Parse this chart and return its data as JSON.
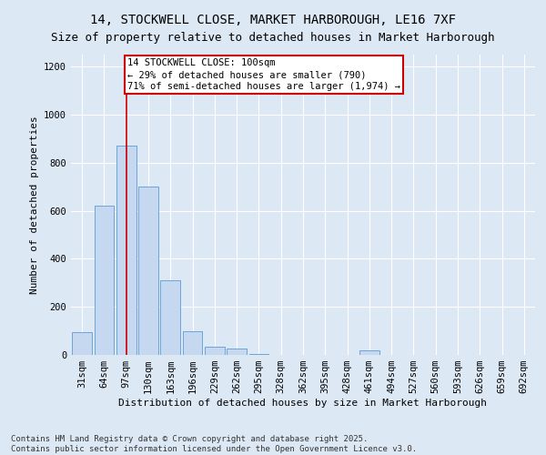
{
  "title": "14, STOCKWELL CLOSE, MARKET HARBOROUGH, LE16 7XF",
  "subtitle": "Size of property relative to detached houses in Market Harborough",
  "xlabel": "Distribution of detached houses by size in Market Harborough",
  "ylabel": "Number of detached properties",
  "categories": [
    "31sqm",
    "64sqm",
    "97sqm",
    "130sqm",
    "163sqm",
    "196sqm",
    "229sqm",
    "262sqm",
    "295sqm",
    "328sqm",
    "362sqm",
    "395sqm",
    "428sqm",
    "461sqm",
    "494sqm",
    "527sqm",
    "560sqm",
    "593sqm",
    "626sqm",
    "659sqm",
    "692sqm"
  ],
  "values": [
    95,
    620,
    870,
    700,
    310,
    100,
    35,
    25,
    5,
    0,
    0,
    0,
    0,
    20,
    0,
    0,
    0,
    0,
    0,
    0,
    0
  ],
  "bar_color": "#c5d8f0",
  "bar_edge_color": "#5b9bd5",
  "annotation_box_text": "14 STOCKWELL CLOSE: 100sqm\n← 29% of detached houses are smaller (790)\n71% of semi-detached houses are larger (1,974) →",
  "annotation_box_color": "#ffffff",
  "annotation_box_edge_color": "#cc0000",
  "vline_color": "#cc0000",
  "vline_x": 2.5,
  "footnote": "Contains HM Land Registry data © Crown copyright and database right 2025.\nContains public sector information licensed under the Open Government Licence v3.0.",
  "ylim": [
    0,
    1250
  ],
  "yticks": [
    0,
    200,
    400,
    600,
    800,
    1000,
    1200
  ],
  "background_color": "#dde8f5",
  "plot_background_color": "#dde8f5",
  "title_fontsize": 10,
  "subtitle_fontsize": 9,
  "axis_label_fontsize": 8,
  "tick_fontsize": 7.5,
  "annotation_fontsize": 7.5,
  "footnote_fontsize": 6.5
}
